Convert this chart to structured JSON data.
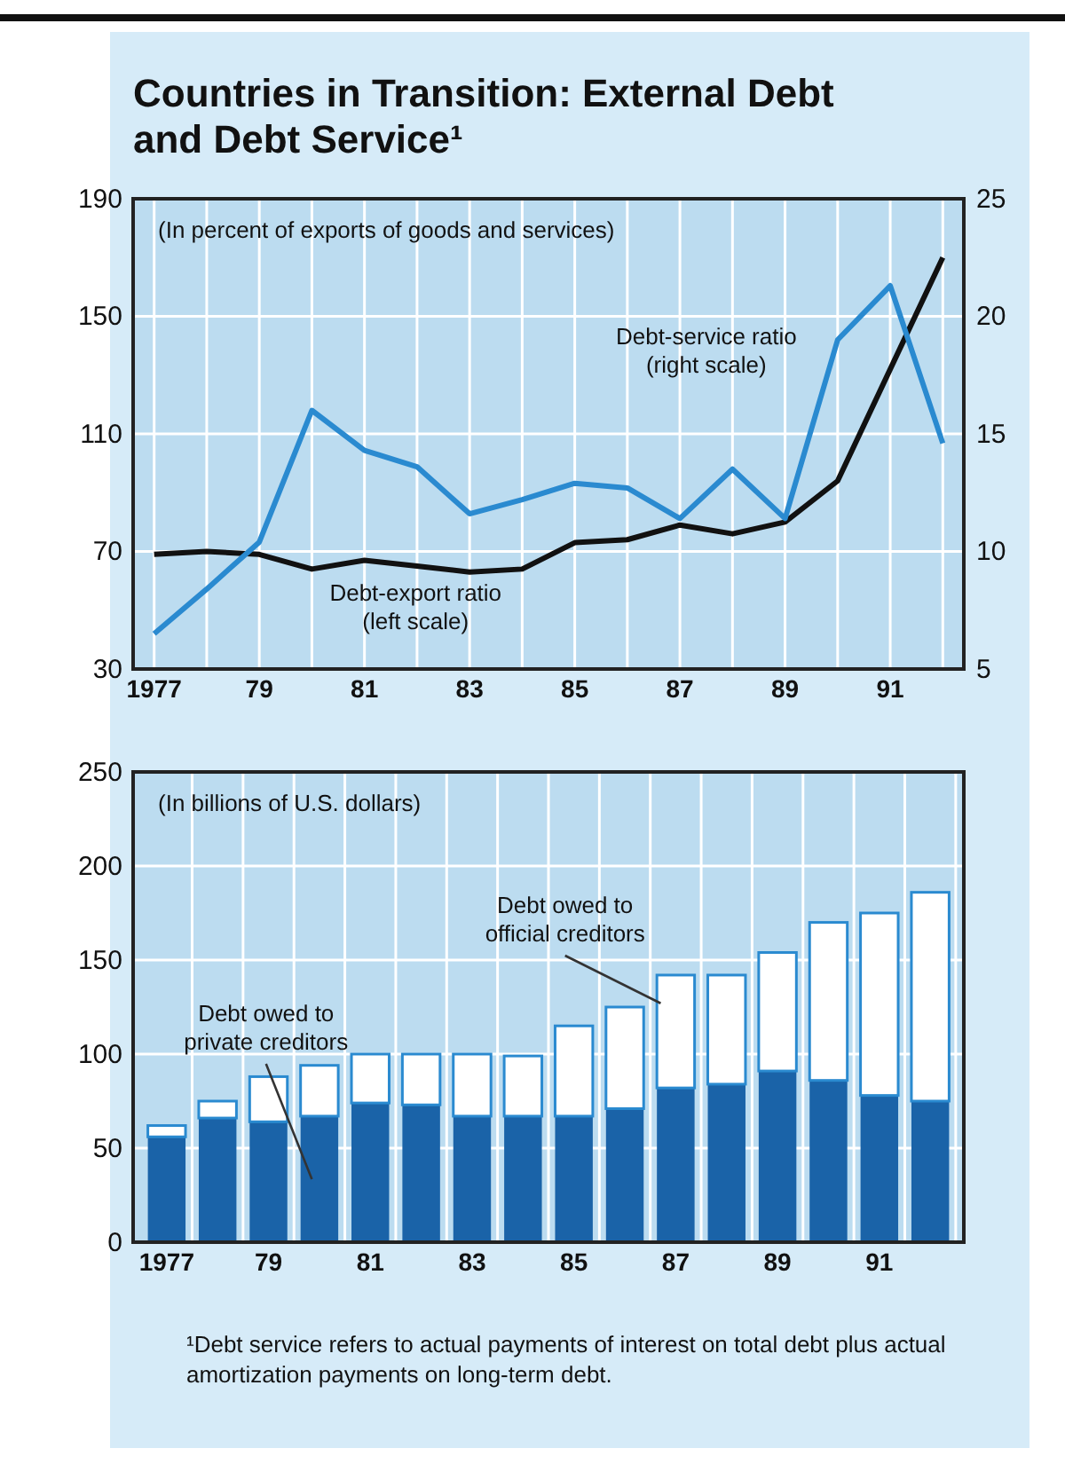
{
  "chart_data": [
    {
      "type": "line",
      "title": "Countries in Transition: External Debt and Debt Service¹",
      "annotations": [
        "(In percent of exports of goods and services)"
      ],
      "x": [
        1977,
        1978,
        1979,
        1980,
        1981,
        1982,
        1983,
        1984,
        1985,
        1986,
        1987,
        1988,
        1989,
        1990,
        1991,
        1992
      ],
      "xlim": [
        1976.6,
        1992.4
      ],
      "xticks": [
        {
          "value": 1977,
          "label": "1977"
        },
        {
          "value": 1978,
          "label": null
        },
        {
          "value": 1979,
          "label": "79"
        },
        {
          "value": 1980,
          "label": null
        },
        {
          "value": 1981,
          "label": "81"
        },
        {
          "value": 1982,
          "label": null
        },
        {
          "value": 1983,
          "label": "83"
        },
        {
          "value": 1984,
          "label": null
        },
        {
          "value": 1985,
          "label": "85"
        },
        {
          "value": 1986,
          "label": null
        },
        {
          "value": 1987,
          "label": "87"
        },
        {
          "value": 1988,
          "label": null
        },
        {
          "value": 1989,
          "label": "89"
        },
        {
          "value": 1990,
          "label": null
        },
        {
          "value": 1991,
          "label": "91"
        },
        {
          "value": 1992,
          "label": null
        }
      ],
      "ylim": [
        30,
        190
      ],
      "yticks": [
        30,
        70,
        110,
        150,
        190
      ],
      "y2lim": [
        5,
        25
      ],
      "y2ticks": [
        5,
        10,
        15,
        20,
        25
      ],
      "grid": true,
      "series": [
        {
          "name": "Debt-export ratio (left scale)",
          "color": "#111111",
          "values": [
            69,
            70,
            69,
            64,
            67,
            65,
            63,
            64,
            73,
            74,
            79,
            76,
            80,
            94,
            132,
            170
          ]
        },
        {
          "name": "Debt-service ratio (right scale)",
          "color": "#2a8ad0",
          "axis": "y2",
          "values": [
            6.5,
            8.4,
            10.4,
            16.0,
            14.3,
            13.6,
            11.6,
            12.2,
            12.9,
            12.7,
            11.4,
            13.5,
            11.4,
            19.0,
            21.3,
            14.6
          ]
        }
      ]
    },
    {
      "type": "bar",
      "stacked": true,
      "annotations": [
        "(In billions of U.S. dollars)",
        "¹Debt service refers to actual payments of interest on total debt plus actual amortization payments on long-term debt."
      ],
      "categories": [
        "1977",
        null,
        "79",
        null,
        "81",
        null,
        "83",
        null,
        "85",
        null,
        "87",
        null,
        "89",
        null,
        "91",
        null
      ],
      "ylim": [
        0,
        250
      ],
      "yticks": [
        0,
        50,
        100,
        150,
        200,
        250
      ],
      "grid": true,
      "series": [
        {
          "name": "Debt owed to private creditors",
          "color": "#1a63a8",
          "values": [
            56,
            66,
            64,
            67,
            74,
            73,
            67,
            67,
            67,
            71,
            82,
            84,
            91,
            86,
            78,
            75
          ]
        },
        {
          "name": "Debt owed to official creditors",
          "color": "#ffffff",
          "values": [
            6,
            9,
            24,
            27,
            26,
            27,
            33,
            32,
            48,
            54,
            60,
            58,
            63,
            84,
            97,
            111
          ]
        }
      ]
    }
  ]
}
